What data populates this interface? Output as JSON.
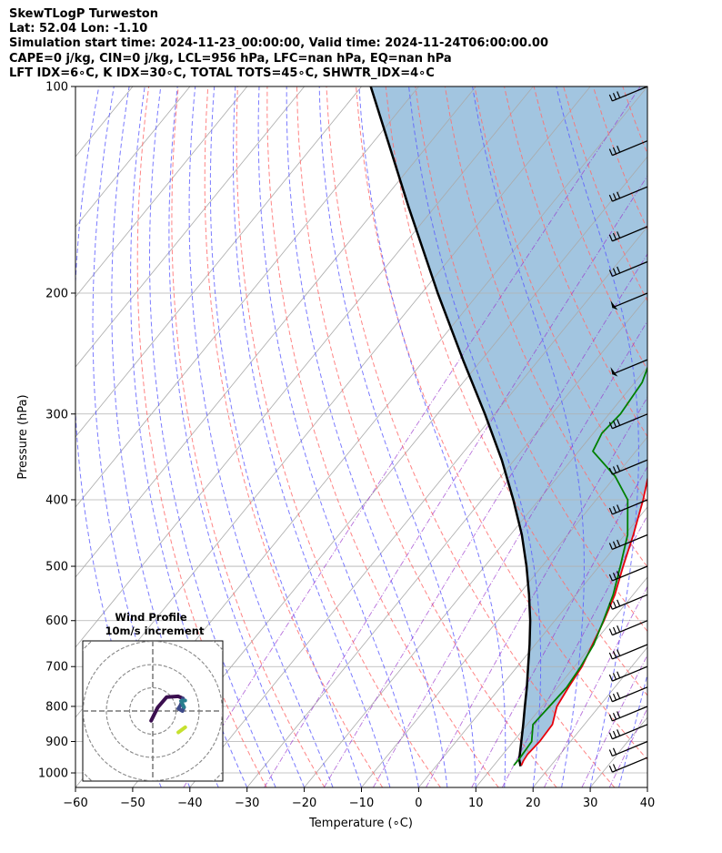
{
  "header": {
    "line1": "SkewTLogP Turweston",
    "line2": "Lat: 52.04   Lon: -1.10",
    "line3": "Simulation start time: 2024-11-23_00:00:00, Valid time: 2024-11-24T06:00:00.00",
    "line4": "CAPE=0 j/kg, CIN=0 j/kg, LCL=956 hPa, LFC=nan hPa, EQ=nan hPa",
    "line5": "LFT IDX=6∘C, K IDX=30∘C, TOTAL TOTS=45∘C, SHWTR_IDX=4∘C"
  },
  "chart_data": {
    "type": "skewt",
    "xlabel": "Temperature (∘C)",
    "ylabel": "Pressure (hPa)",
    "xlim": [
      -60,
      40
    ],
    "ylim": [
      1050,
      100
    ],
    "y_scale": "log",
    "x_ticks": [
      -60,
      -50,
      -40,
      -30,
      -20,
      -10,
      0,
      10,
      20,
      30,
      40
    ],
    "x_tick_labels": [
      "−60",
      "−50",
      "−40",
      "−30",
      "−20",
      "−10",
      "0",
      "10",
      "20",
      "30",
      "40"
    ],
    "y_ticks": [
      1000,
      900,
      800,
      700,
      600,
      500,
      400,
      300,
      200,
      100
    ],
    "y_tick_labels": [
      "1000",
      "900",
      "800",
      "700",
      "600",
      "500",
      "400",
      "300",
      "200",
      "100"
    ],
    "grid": true,
    "colors": {
      "temperature": "#e8000b",
      "dewpoint": "#008000",
      "parcel": "#000000",
      "fill": "#7bacd3",
      "dry_adiabat": "#ff6f6f",
      "moist_adiabat": "#5a5aff",
      "mixing_ratio": "#9933cc",
      "isotherm": "#aaaaaa"
    },
    "series": [
      {
        "key": "temperature",
        "pressure": [
          975,
          960,
          940,
          900,
          850,
          800,
          750,
          700,
          650,
          600,
          550,
          500,
          450,
          400,
          350,
          300,
          250,
          220,
          200,
          180,
          160,
          140,
          120,
          100
        ],
        "temperature": [
          14.8,
          14.5,
          14.3,
          14.6,
          14.4,
          12.6,
          11.9,
          11.3,
          10.0,
          8.6,
          6.8,
          4.2,
          1.5,
          -1.8,
          -6.0,
          -11.5,
          -19.0,
          -23.0,
          -24.5,
          -21.5,
          -17.0,
          -14.5,
          -13.5,
          -13.5
        ]
      },
      {
        "key": "dewpoint",
        "pressure": [
          975,
          950,
          900,
          850,
          800,
          750,
          700,
          650,
          600,
          550,
          500,
          450,
          400,
          370,
          340,
          320,
          300,
          270,
          250,
          220,
          200,
          185,
          170,
          150,
          130,
          100
        ],
        "temperature": [
          13.5,
          13.5,
          13.2,
          11.0,
          11.3,
          11.6,
          11.1,
          10.2,
          8.5,
          6.5,
          3.7,
          0.5,
          -4.5,
          -10.0,
          -17.5,
          -18.5,
          -18.0,
          -18.7,
          -20.5,
          -24.5,
          -26.5,
          -26.0,
          -26.5,
          -32.0,
          -31.5,
          -27.5
        ]
      },
      {
        "key": "parcel",
        "pressure": [
          978,
          956,
          900,
          850,
          800,
          750,
          700,
          650,
          600,
          550,
          500,
          450,
          400,
          350,
          300,
          250,
          200,
          150,
          100
        ],
        "temperature": [
          14.8,
          13.6,
          11.4,
          9.3,
          7.0,
          4.6,
          1.9,
          -1.0,
          -4.3,
          -8.2,
          -12.7,
          -18.0,
          -24.5,
          -32.2,
          -41.7,
          -53.3,
          -67.2,
          -84.5,
          -108.4
        ]
      }
    ],
    "wind_barbs_pressure": [
      950,
      900,
      850,
      800,
      750,
      700,
      650,
      600,
      550,
      500,
      450,
      400,
      350,
      300,
      250,
      200,
      180,
      160,
      140,
      120,
      100
    ],
    "inset": {
      "title": "Wind Profile",
      "subtitle": "10m/s increment",
      "ring_step_ms": 10,
      "hodograph": [
        {
          "segment": "low",
          "color": "#3b0f4f",
          "points": [
            [
              -0.7,
              -4.2
            ],
            [
              2.1,
              1.5
            ],
            [
              6.0,
              6.0
            ],
            [
              11.0,
              6.3
            ],
            [
              13.0,
              5.4
            ]
          ]
        },
        {
          "segment": "mid",
          "color": "#3e4a89",
          "points": [
            [
              13.0,
              5.4
            ],
            [
              12.0,
              2.5
            ],
            [
              11.0,
              1.0
            ],
            [
              12.8,
              0.0
            ],
            [
              13.5,
              1.6
            ]
          ]
        },
        {
          "segment": "upper",
          "color": "#287d8e",
          "points": [
            [
              13.5,
              1.6
            ],
            [
              12.2,
              4.3
            ],
            [
              14.0,
              4.5
            ]
          ]
        },
        {
          "segment": "top",
          "color": "#c6e12f",
          "points": [
            [
              11.0,
              -9.2
            ],
            [
              14.0,
              -7.0
            ]
          ]
        }
      ]
    }
  }
}
